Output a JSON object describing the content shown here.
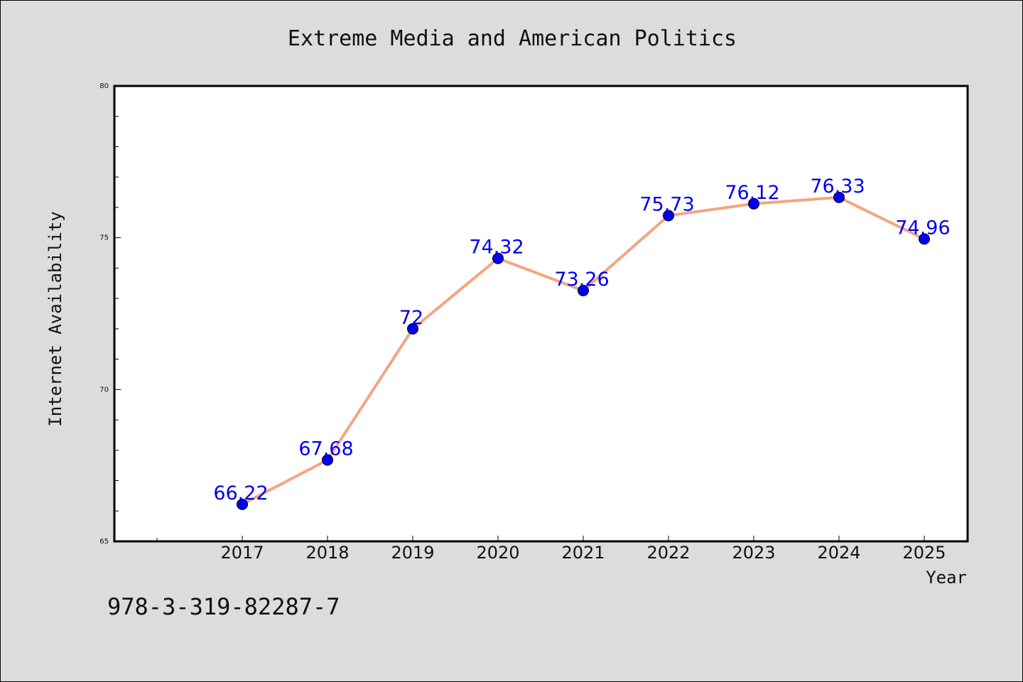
{
  "chart_data": {
    "type": "line",
    "title": "Extreme Media and American Politics",
    "xlabel": "Year",
    "ylabel": "Internet Availability",
    "categories": [
      "2017",
      "2018",
      "2019",
      "2020",
      "2021",
      "2022",
      "2023",
      "2024",
      "2025"
    ],
    "values": [
      66.22,
      67.68,
      72,
      74.32,
      73.26,
      75.73,
      76.12,
      76.33,
      74.96
    ],
    "data_labels": [
      "66.22",
      "67.68",
      "72",
      "74.32",
      "73.26",
      "75.73",
      "76.12",
      "76.33",
      "74.96"
    ],
    "ylim": [
      65,
      80
    ],
    "yticks": [
      "65",
      "70",
      "75",
      "80"
    ],
    "grid": false,
    "line_color": "#f4a582",
    "marker_color": "#0000ee",
    "label_color": "#0000ee"
  },
  "footer_text": "978-3-319-82287-7"
}
